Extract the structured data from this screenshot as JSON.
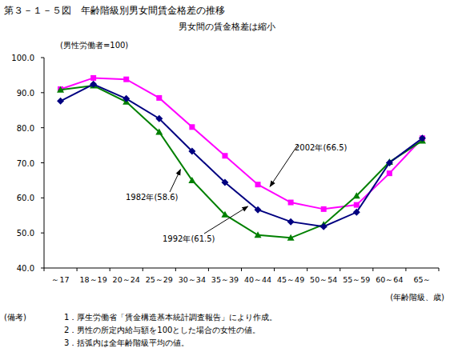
{
  "chart_data": {
    "type": "line",
    "title": "第３－１－５図　年齢階級別男女間賃金格差の推移",
    "subtitle": "男女間の賃金格差は縮小",
    "y_label": "(男性労働者=100)",
    "x_label": "(年齢階級、歳)",
    "categories": [
      "～17",
      "18～19",
      "20～24",
      "25～29",
      "30～34",
      "35～39",
      "40～44",
      "45～49",
      "50～54",
      "55～59",
      "60～64",
      "65～"
    ],
    "series": [
      {
        "name": "2002年(66.5)",
        "color": "#ff00ff",
        "marker": "square",
        "values": [
          91.0,
          94.2,
          93.8,
          88.5,
          80.2,
          72.0,
          63.8,
          58.7,
          56.8,
          58.0,
          67.0,
          77.0
        ]
      },
      {
        "name": "1982年(58.6)",
        "color": "#008000",
        "marker": "triangle",
        "values": [
          90.8,
          92.0,
          87.4,
          78.8,
          65.0,
          55.2,
          49.4,
          48.6,
          52.4,
          60.6,
          70.2,
          76.3
        ]
      },
      {
        "name": "1992年(61.5)",
        "color": "#000080",
        "marker": "diamond",
        "values": [
          87.6,
          92.4,
          88.3,
          82.6,
          73.3,
          64.4,
          56.6,
          53.2,
          51.8,
          55.9,
          70.0,
          77.0
        ]
      }
    ],
    "ylim": [
      40,
      100
    ],
    "yticks": [
      {
        "value": 40,
        "label": "40.0"
      },
      {
        "value": 50,
        "label": "50.0"
      },
      {
        "value": 60,
        "label": "60.0"
      },
      {
        "value": 70,
        "label": "70.0"
      },
      {
        "value": 80,
        "label": "80.0"
      },
      {
        "value": 90,
        "label": "90.0"
      },
      {
        "value": 100,
        "label": "100.0"
      }
    ],
    "grid": false,
    "notes_title": "(備考)",
    "notes": [
      "1．厚生労働省「賃金構造基本統計調査報告」により作成。",
      "2．男性の所定内給与額を100とした場合の女性の値。",
      "3．括弧内は全年齢階級平均の値。"
    ]
  }
}
